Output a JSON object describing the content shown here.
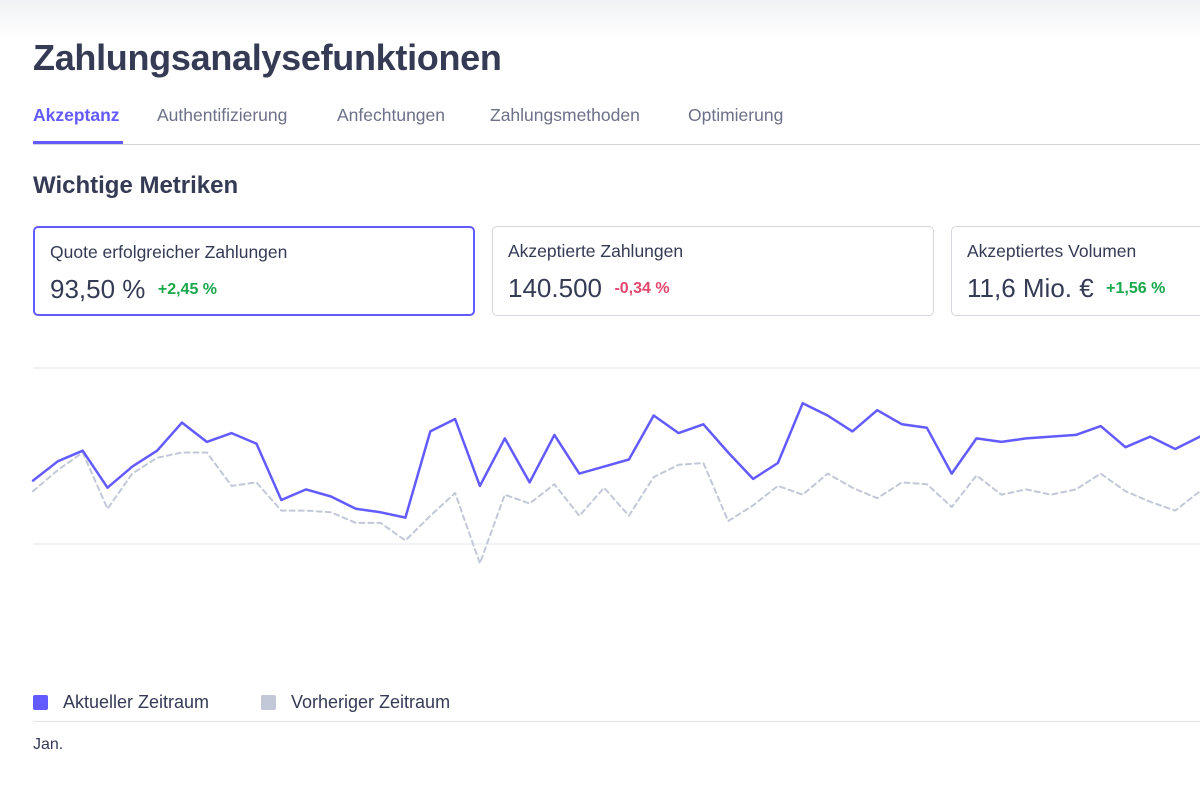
{
  "page": {
    "title": "Zahlungsanalysefunktionen"
  },
  "tabs": [
    {
      "label": "Akzeptanz",
      "active": true
    },
    {
      "label": "Authentifizierung",
      "active": false
    },
    {
      "label": "Anfechtungen",
      "active": false
    },
    {
      "label": "Zahlungsmethoden",
      "active": false
    },
    {
      "label": "Optimierung",
      "active": false
    }
  ],
  "section": {
    "title": "Wichtige Metriken"
  },
  "metrics": [
    {
      "label": "Quote erfolgreicher Zahlungen",
      "value": "93,50 %",
      "delta": "+2,45 %",
      "trend": "up",
      "selected": true
    },
    {
      "label": "Akzeptierte Zahlungen",
      "value": "140.500",
      "delta": "-0,34 %",
      "trend": "down",
      "selected": false
    },
    {
      "label": "Akzeptiertes Volumen",
      "value": "11,6 Mio. €",
      "delta": "+1,56 %",
      "trend": "up",
      "selected": false
    }
  ],
  "colors": {
    "accent": "#635bff",
    "previous": "#c3c8d8",
    "positive": "#1aa84c",
    "negative": "#e3456d"
  },
  "chart_data": {
    "type": "line",
    "xlabel": "",
    "ylabel": "",
    "x_tick_labels": [
      "Jan."
    ],
    "ylim": [
      0,
      100
    ],
    "grid": true,
    "legend_position": "bottom-left",
    "series": [
      {
        "name": "Aktueller Zeitraum",
        "color": "#635bff",
        "style": "solid",
        "values": [
          36,
          47,
          53,
          32,
          44,
          53,
          69,
          58,
          63,
          57,
          25,
          31,
          27,
          20,
          18,
          15,
          64,
          71,
          33,
          60,
          35,
          62,
          40,
          44,
          48,
          73,
          63,
          68,
          52,
          37,
          46,
          80,
          73,
          64,
          76,
          68,
          66,
          40,
          60,
          58,
          60,
          61,
          62,
          67,
          55,
          61,
          54,
          61
        ]
      },
      {
        "name": "Vorheriger Zeitraum",
        "color": "#c3c8d8",
        "style": "dashed",
        "values": [
          30,
          42,
          52,
          20,
          40,
          49,
          52,
          52,
          33,
          35,
          19,
          19,
          18,
          12,
          12,
          2,
          16,
          29,
          -11,
          28,
          23,
          34,
          16,
          32,
          16,
          38,
          45,
          46,
          13,
          22,
          33,
          28,
          40,
          32,
          26,
          35,
          34,
          21,
          39,
          28,
          31,
          28,
          31,
          40,
          30,
          24,
          19,
          30
        ]
      }
    ]
  }
}
